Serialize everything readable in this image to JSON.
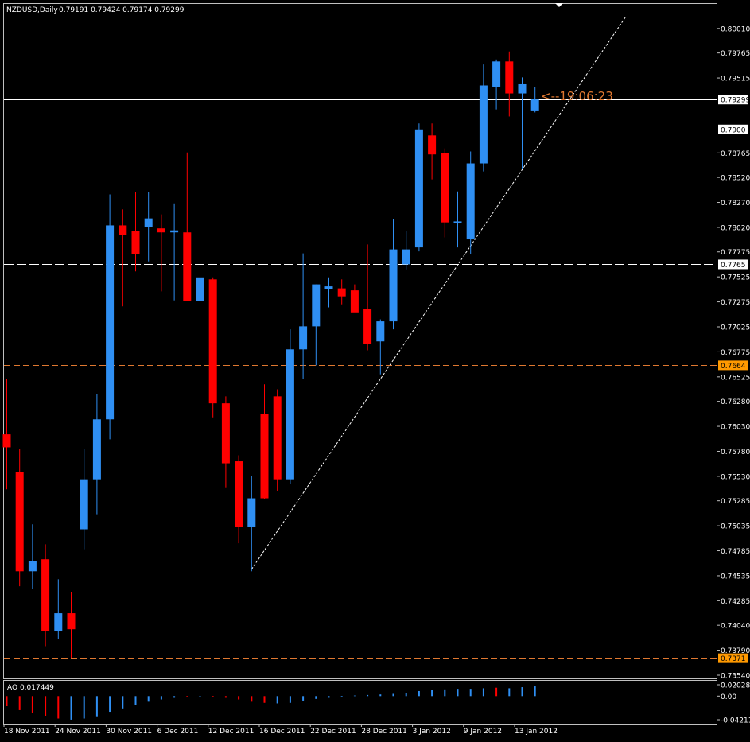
{
  "header": {
    "symbol_tf": "NZDUSD,Daily",
    "ohlc": "0.79191 0.79424 0.79174 0.79299"
  },
  "timer": "<--19:06:23",
  "colors": {
    "background": "#000000",
    "bull": "#2f8ff3",
    "bear": "#ff0000",
    "grid_text": "#ffffff",
    "hline_white": "#ffffff",
    "hline_orange": "#e07830",
    "bid_label_bg": "#ffffff",
    "orange_label_bg": "#ff9900"
  },
  "chart_data": [
    {
      "type": "candlestick",
      "title": "NZDUSD,Daily",
      "y_ticks": [
        "0.80010",
        "0.79765",
        "0.79515",
        "0.79299",
        "0.7900",
        "0.78765",
        "0.78520",
        "0.78270",
        "0.78020",
        "0.77775",
        "0.7765",
        "0.77525",
        "0.77275",
        "0.77025",
        "0.76775",
        "0.7664",
        "0.76525",
        "0.76280",
        "0.76030",
        "0.75780",
        "0.75530",
        "0.75285",
        "0.75035",
        "0.74785",
        "0.74535",
        "0.74285",
        "0.74040",
        "0.73790",
        "0.7371",
        "0.73540"
      ],
      "ylim": [
        0.7354,
        0.8016
      ],
      "x_labels": [
        "18 Nov 2011",
        "24 Nov 2011",
        "30 Nov 2011",
        "6 Dec 2011",
        "12 Dec 2011",
        "16 Dec 2011",
        "22 Dec 2011",
        "28 Dec 2011",
        "3 Jan 2012",
        "9 Jan 2012",
        "13 Jan 2012"
      ],
      "candles": [
        {
          "o": 0.7595,
          "h": 0.765,
          "l": 0.754,
          "c": 0.7582
        },
        {
          "o": 0.7557,
          "h": 0.758,
          "l": 0.7443,
          "c": 0.7458
        },
        {
          "o": 0.7458,
          "h": 0.7505,
          "l": 0.744,
          "c": 0.7468
        },
        {
          "o": 0.747,
          "h": 0.7485,
          "l": 0.7383,
          "c": 0.7398
        },
        {
          "o": 0.7398,
          "h": 0.745,
          "l": 0.739,
          "c": 0.7416
        },
        {
          "o": 0.7416,
          "h": 0.7437,
          "l": 0.7371,
          "c": 0.74
        },
        {
          "o": 0.75,
          "h": 0.758,
          "l": 0.748,
          "c": 0.755
        },
        {
          "o": 0.755,
          "h": 0.7635,
          "l": 0.7515,
          "c": 0.761
        },
        {
          "o": 0.761,
          "h": 0.7835,
          "l": 0.759,
          "c": 0.7804
        },
        {
          "o": 0.7804,
          "h": 0.782,
          "l": 0.7723,
          "c": 0.7794
        },
        {
          "o": 0.7798,
          "h": 0.7837,
          "l": 0.7758,
          "c": 0.7775
        },
        {
          "o": 0.7802,
          "h": 0.7837,
          "l": 0.7768,
          "c": 0.7811
        },
        {
          "o": 0.7801,
          "h": 0.7815,
          "l": 0.7738,
          "c": 0.7797
        },
        {
          "o": 0.7797,
          "h": 0.7826,
          "l": 0.7729,
          "c": 0.7799
        },
        {
          "o": 0.7797,
          "h": 0.7877,
          "l": 0.773,
          "c": 0.7728
        },
        {
          "o": 0.7728,
          "h": 0.7755,
          "l": 0.7643,
          "c": 0.7752
        },
        {
          "o": 0.775,
          "h": 0.7752,
          "l": 0.7612,
          "c": 0.7626
        },
        {
          "o": 0.7626,
          "h": 0.7633,
          "l": 0.7542,
          "c": 0.7566
        },
        {
          "o": 0.7568,
          "h": 0.7574,
          "l": 0.7486,
          "c": 0.7502
        },
        {
          "o": 0.7502,
          "h": 0.7553,
          "l": 0.7458,
          "c": 0.7531
        },
        {
          "o": 0.7615,
          "h": 0.7645,
          "l": 0.753,
          "c": 0.7531
        },
        {
          "o": 0.7633,
          "h": 0.764,
          "l": 0.7538,
          "c": 0.755
        },
        {
          "o": 0.755,
          "h": 0.77,
          "l": 0.7545,
          "c": 0.768
        },
        {
          "o": 0.768,
          "h": 0.7776,
          "l": 0.765,
          "c": 0.7703
        },
        {
          "o": 0.7703,
          "h": 0.7745,
          "l": 0.7664,
          "c": 0.7745
        },
        {
          "o": 0.774,
          "h": 0.7752,
          "l": 0.7722,
          "c": 0.7743
        },
        {
          "o": 0.7741,
          "h": 0.775,
          "l": 0.7725,
          "c": 0.7733
        },
        {
          "o": 0.7739,
          "h": 0.7745,
          "l": 0.7718,
          "c": 0.7717
        },
        {
          "o": 0.772,
          "h": 0.7785,
          "l": 0.7679,
          "c": 0.7685
        },
        {
          "o": 0.7688,
          "h": 0.771,
          "l": 0.7655,
          "c": 0.7708
        },
        {
          "o": 0.7708,
          "h": 0.781,
          "l": 0.77,
          "c": 0.778
        },
        {
          "o": 0.7765,
          "h": 0.7798,
          "l": 0.776,
          "c": 0.778
        },
        {
          "o": 0.7782,
          "h": 0.7906,
          "l": 0.7778,
          "c": 0.79
        },
        {
          "o": 0.7894,
          "h": 0.7906,
          "l": 0.785,
          "c": 0.7875
        },
        {
          "o": 0.7876,
          "h": 0.7881,
          "l": 0.7792,
          "c": 0.7807
        },
        {
          "o": 0.7806,
          "h": 0.7838,
          "l": 0.7782,
          "c": 0.7808
        },
        {
          "o": 0.779,
          "h": 0.7878,
          "l": 0.7775,
          "c": 0.7866
        },
        {
          "o": 0.7866,
          "h": 0.7965,
          "l": 0.7858,
          "c": 0.7944
        },
        {
          "o": 0.7942,
          "h": 0.797,
          "l": 0.792,
          "c": 0.7968
        },
        {
          "o": 0.7968,
          "h": 0.7978,
          "l": 0.7913,
          "c": 0.7936
        },
        {
          "o": 0.7936,
          "h": 0.7952,
          "l": 0.786,
          "c": 0.7946
        },
        {
          "o": 0.7919,
          "h": 0.7942,
          "l": 0.7917,
          "c": 0.793
        }
      ],
      "hlines": [
        {
          "price": 0.79299,
          "label": "0.79299",
          "style": "solid",
          "color": "#ffffff"
        },
        {
          "price": 0.79,
          "label": "0.7900",
          "style": "dashed",
          "color": "#ffffff"
        },
        {
          "price": 0.7765,
          "label": "0.7765",
          "style": "dashed",
          "color": "#ffffff"
        },
        {
          "price": 0.7664,
          "label": "0.7664",
          "style": "dashed",
          "color": "#e07830"
        },
        {
          "price": 0.7371,
          "label": "0.7371",
          "style": "dashed",
          "color": "#e07830"
        }
      ],
      "trendline": {
        "from_index": 19,
        "from_price": 0.746,
        "to_index": 48,
        "to_price": 0.8012
      }
    },
    {
      "type": "histogram",
      "title": "AO 0.017449",
      "y_ticks": [
        "0.020286",
        "0.00",
        "-0.04211"
      ],
      "ylim": [
        -0.04211,
        0.020286
      ],
      "values": [
        -0.018,
        -0.025,
        -0.03,
        -0.035,
        -0.04,
        -0.042,
        -0.04,
        -0.036,
        -0.028,
        -0.022,
        -0.016,
        -0.01,
        -0.006,
        -0.003,
        -0.002,
        -0.002,
        -0.002,
        -0.003,
        -0.006,
        -0.01,
        -0.012,
        -0.013,
        -0.012,
        -0.008,
        -0.005,
        -0.003,
        -0.002,
        0.001,
        0.002,
        0.003,
        0.004,
        0.006,
        0.009,
        0.011,
        0.012,
        0.013,
        0.013,
        0.014,
        0.015,
        0.014,
        0.016,
        0.0174
      ],
      "colors": [
        "red",
        "red",
        "red",
        "red",
        "red",
        "blue",
        "blue",
        "blue",
        "blue",
        "blue",
        "blue",
        "blue",
        "blue",
        "blue",
        "red",
        "blue",
        "red",
        "red",
        "red",
        "red",
        "red",
        "blue",
        "blue",
        "blue",
        "blue",
        "blue",
        "blue",
        "blue",
        "blue",
        "blue",
        "blue",
        "blue",
        "blue",
        "blue",
        "blue",
        "blue",
        "blue",
        "blue",
        "red",
        "blue",
        "blue",
        "blue"
      ]
    }
  ]
}
